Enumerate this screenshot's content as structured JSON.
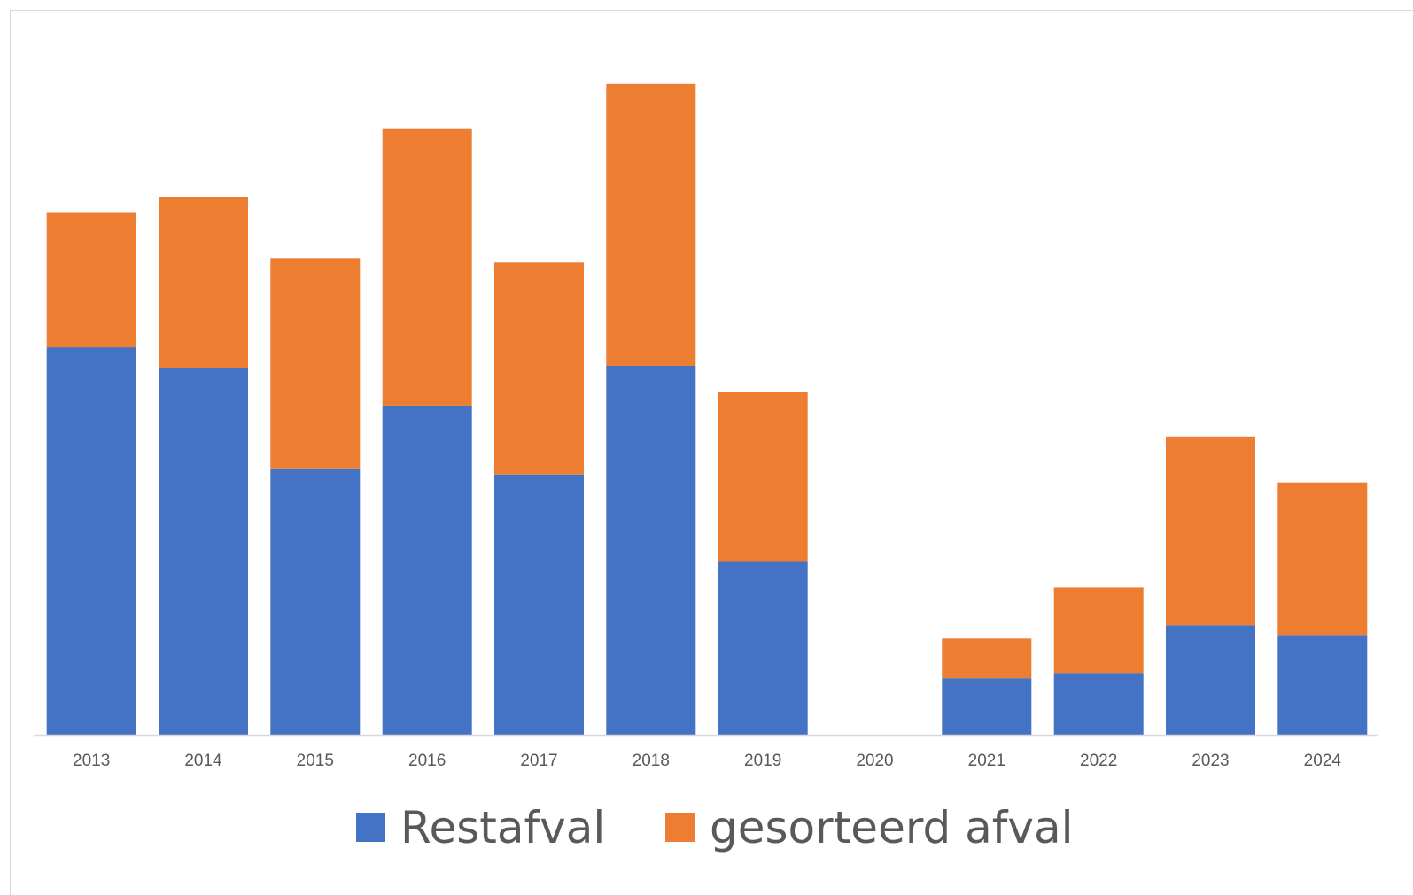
{
  "chart_data": {
    "type": "bar",
    "stacked": true,
    "title": "",
    "xlabel": "",
    "ylabel": "",
    "categories": [
      "2013",
      "2014",
      "2015",
      "2016",
      "2017",
      "2018",
      "2019",
      "2020",
      "2021",
      "2022",
      "2023",
      "2024"
    ],
    "series": [
      {
        "name": "Restafval",
        "color": "#4472c4",
        "values": [
          439,
          415,
          301,
          372,
          295,
          417,
          196,
          0,
          64,
          70,
          124,
          113
        ]
      },
      {
        "name": "gesorteerd afval",
        "color": "#ed7d31",
        "values": [
          152,
          194,
          238,
          314,
          240,
          320,
          192,
          0,
          45,
          97,
          213,
          172
        ]
      }
    ],
    "ylim": [
      0,
      800
    ],
    "grid": false,
    "legend_position": "bottom"
  }
}
